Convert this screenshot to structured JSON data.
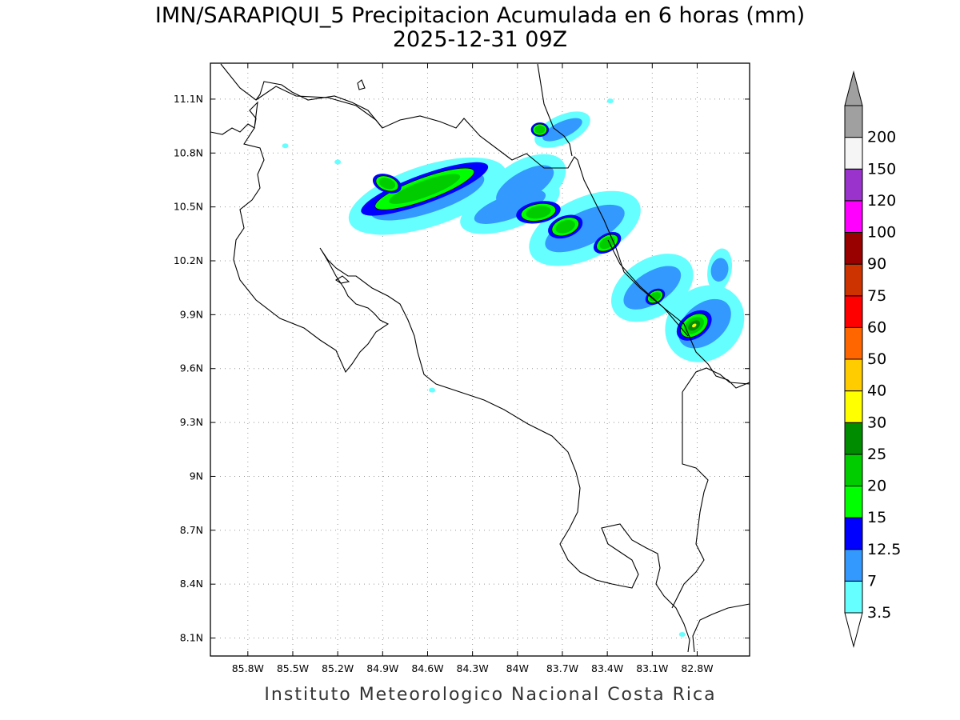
{
  "title": {
    "line1": "IMN/SARAPIQUI_5 Precipitacion Acumulada en 6 horas (mm)",
    "line2": "2025-12-31 09Z"
  },
  "footer": "Instituto Meteorologico Nacional Costa Rica",
  "map": {
    "region": "Costa Rica",
    "lon_range": [
      -86.05,
      -82.45
    ],
    "lat_range": [
      8.0,
      11.3
    ],
    "lon_ticks": [
      {
        "value": -85.8,
        "label": "85.8W"
      },
      {
        "value": -85.5,
        "label": "85.5W"
      },
      {
        "value": -85.2,
        "label": "85.2W"
      },
      {
        "value": -84.9,
        "label": "84.9W"
      },
      {
        "value": -84.6,
        "label": "84.6W"
      },
      {
        "value": -84.3,
        "label": "84.3W"
      },
      {
        "value": -84.0,
        "label": "84W"
      },
      {
        "value": -83.7,
        "label": "83.7W"
      },
      {
        "value": -83.4,
        "label": "83.4W"
      },
      {
        "value": -83.1,
        "label": "83.1W"
      },
      {
        "value": -82.8,
        "label": "82.8W"
      }
    ],
    "lat_ticks": [
      {
        "value": 11.1,
        "label": "11.1N"
      },
      {
        "value": 10.8,
        "label": "10.8N"
      },
      {
        "value": 10.5,
        "label": "10.5N"
      },
      {
        "value": 10.2,
        "label": "10.2N"
      },
      {
        "value": 9.9,
        "label": "9.9N"
      },
      {
        "value": 9.6,
        "label": "9.6N"
      },
      {
        "value": 9.3,
        "label": "9.3N"
      },
      {
        "value": 9.0,
        "label": "9N"
      },
      {
        "value": 8.7,
        "label": "8.7N"
      },
      {
        "value": 8.4,
        "label": "8.4N"
      },
      {
        "value": 8.1,
        "label": "8.1N"
      }
    ],
    "grid": true
  },
  "colorbar": {
    "levels": [
      {
        "label": "3.5",
        "color": "#66ffff"
      },
      {
        "label": "7",
        "color": "#3399ff"
      },
      {
        "label": "12.5",
        "color": "#0000ff"
      },
      {
        "label": "15",
        "color": "#00ff00"
      },
      {
        "label": "20",
        "color": "#00cc00"
      },
      {
        "label": "25",
        "color": "#008c00"
      },
      {
        "label": "30",
        "color": "#ffff00"
      },
      {
        "label": "40",
        "color": "#ffcc00"
      },
      {
        "label": "50",
        "color": "#ff6600"
      },
      {
        "label": "60",
        "color": "#ff0000"
      },
      {
        "label": "75",
        "color": "#cc3300"
      },
      {
        "label": "90",
        "color": "#990000"
      },
      {
        "label": "100",
        "color": "#ff00ff"
      },
      {
        "label": "120",
        "color": "#9933cc"
      },
      {
        "label": "150",
        "color": "#f5f5f5"
      },
      {
        "label": "200",
        "color": "#a0a0a0"
      }
    ],
    "below_color": "#ffffff",
    "above_color": "#a0a0a0"
  },
  "precipitation_cells": [
    {
      "lon": -84.62,
      "lat": 10.6,
      "rx_deg": 0.45,
      "ry_deg": 0.08,
      "angle": -20,
      "max_level": 4
    },
    {
      "lon": -84.87,
      "lat": 10.63,
      "rx_deg": 0.1,
      "ry_deg": 0.05,
      "angle": 20,
      "max_level": 4
    },
    {
      "lon": -83.86,
      "lat": 10.47,
      "rx_deg": 0.15,
      "ry_deg": 0.06,
      "angle": -10,
      "max_level": 4
    },
    {
      "lon": -83.68,
      "lat": 10.39,
      "rx_deg": 0.12,
      "ry_deg": 0.06,
      "angle": -20,
      "max_level": 4
    },
    {
      "lon": -83.4,
      "lat": 10.3,
      "rx_deg": 0.1,
      "ry_deg": 0.05,
      "angle": -30,
      "max_level": 4
    },
    {
      "lon": -83.85,
      "lat": 10.93,
      "rx_deg": 0.06,
      "ry_deg": 0.04,
      "angle": 0,
      "max_level": 4
    },
    {
      "lon": -83.08,
      "lat": 10.0,
      "rx_deg": 0.07,
      "ry_deg": 0.04,
      "angle": -30,
      "max_level": 4
    },
    {
      "lon": -82.82,
      "lat": 9.84,
      "rx_deg": 0.13,
      "ry_deg": 0.07,
      "angle": -35,
      "max_level": 6
    }
  ]
}
